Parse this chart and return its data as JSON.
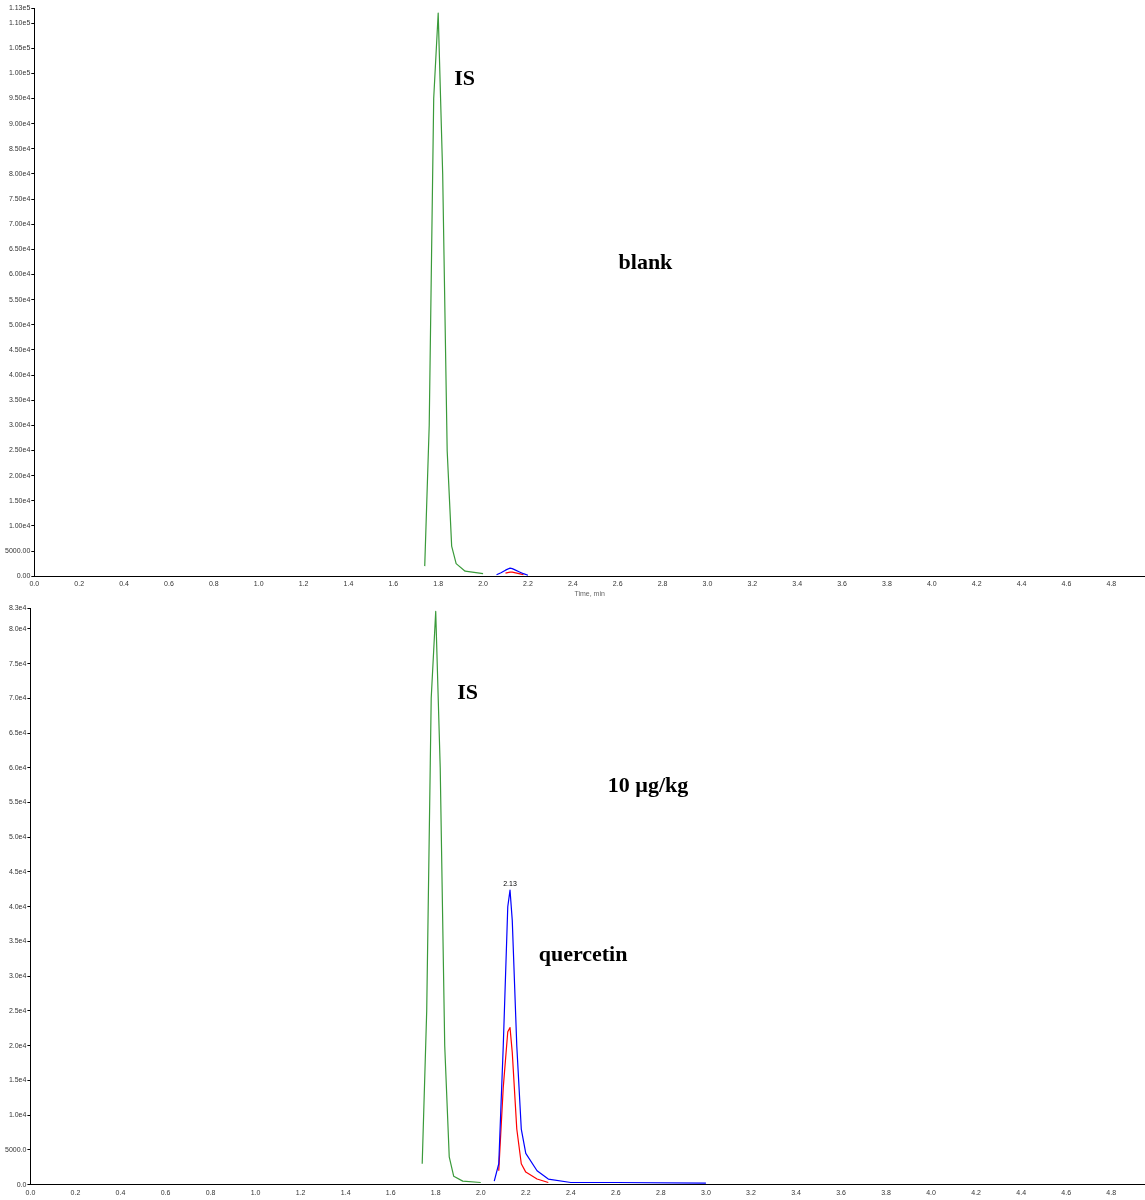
{
  "chart_data": [
    {
      "type": "line",
      "title": "blank",
      "xlabel": "Time, min",
      "x": [
        1.74,
        1.76,
        1.78,
        1.8,
        1.82,
        1.84,
        1.86,
        1.88,
        1.92,
        2.0,
        2.06,
        2.08,
        2.1,
        2.12,
        2.13,
        2.14,
        2.16,
        2.18,
        2.2
      ],
      "series": [
        {
          "color": "#3a9a3a",
          "values": [
            2000,
            30000,
            95000,
            112000,
            80000,
            25000,
            6000,
            2500,
            1000,
            500,
            null,
            null,
            null,
            null,
            null,
            null,
            null,
            null,
            null
          ]
        },
        {
          "color": "#0000ff",
          "values": [
            null,
            null,
            null,
            null,
            null,
            null,
            null,
            null,
            null,
            null,
            300,
            700,
            1200,
            1600,
            1500,
            1300,
            900,
            500,
            200
          ]
        },
        {
          "color": "#ff0000",
          "values": [
            null,
            null,
            null,
            null,
            null,
            null,
            null,
            null,
            null,
            null,
            null,
            null,
            600,
            800,
            800,
            700,
            500,
            300,
            null
          ]
        }
      ],
      "annotations": [
        "IS"
      ],
      "xlim": [
        0,
        4.95
      ],
      "ylim": [
        0,
        113000
      ],
      "xticks": [
        {
          "value": 0,
          "label": "0.0"
        },
        {
          "value": 0.2,
          "label": "0.2"
        },
        {
          "value": 0.4,
          "label": "0.4"
        },
        {
          "value": 0.6,
          "label": "0.6"
        },
        {
          "value": 0.8,
          "label": "0.8"
        },
        {
          "value": 1.0,
          "label": "1.0"
        },
        {
          "value": 1.2,
          "label": "1.2"
        },
        {
          "value": 1.4,
          "label": "1.4"
        },
        {
          "value": 1.6,
          "label": "1.6"
        },
        {
          "value": 1.8,
          "label": "1.8"
        },
        {
          "value": 2.0,
          "label": "2.0"
        },
        {
          "value": 2.2,
          "label": "2.2"
        },
        {
          "value": 2.4,
          "label": "2.4"
        },
        {
          "value": 2.6,
          "label": "2.6"
        },
        {
          "value": 2.8,
          "label": "2.8"
        },
        {
          "value": 3.0,
          "label": "3.0"
        },
        {
          "value": 3.2,
          "label": "3.2"
        },
        {
          "value": 3.4,
          "label": "3.4"
        },
        {
          "value": 3.6,
          "label": "3.6"
        },
        {
          "value": 3.8,
          "label": "3.8"
        },
        {
          "value": 4.0,
          "label": "4.0"
        },
        {
          "value": 4.2,
          "label": "4.2"
        },
        {
          "value": 4.4,
          "label": "4.4"
        },
        {
          "value": 4.6,
          "label": "4.6"
        },
        {
          "value": 4.8,
          "label": "4.8"
        }
      ],
      "yticks": [
        {
          "value": 0,
          "label": "0.00"
        },
        {
          "value": 5000,
          "label": "5000.00"
        },
        {
          "value": 10000,
          "label": "1.00e4"
        },
        {
          "value": 15000,
          "label": "1.50e4"
        },
        {
          "value": 20000,
          "label": "2.00e4"
        },
        {
          "value": 25000,
          "label": "2.50e4"
        },
        {
          "value": 30000,
          "label": "3.00e4"
        },
        {
          "value": 35000,
          "label": "3.50e4"
        },
        {
          "value": 40000,
          "label": "4.00e4"
        },
        {
          "value": 45000,
          "label": "4.50e4"
        },
        {
          "value": 50000,
          "label": "5.00e4"
        },
        {
          "value": 55000,
          "label": "5.50e4"
        },
        {
          "value": 60000,
          "label": "6.00e4"
        },
        {
          "value": 65000,
          "label": "6.50e4"
        },
        {
          "value": 70000,
          "label": "7.00e4"
        },
        {
          "value": 75000,
          "label": "7.50e4"
        },
        {
          "value": 80000,
          "label": "8.00e4"
        },
        {
          "value": 85000,
          "label": "8.50e4"
        },
        {
          "value": 90000,
          "label": "9.00e4"
        },
        {
          "value": 95000,
          "label": "9.50e4"
        },
        {
          "value": 100000,
          "label": "1.00e5"
        },
        {
          "value": 105000,
          "label": "1.05e5"
        },
        {
          "value": 110000,
          "label": "1.10e5"
        },
        {
          "value": 113000,
          "label": "1.13e5"
        }
      ],
      "grid": false,
      "legend": false,
      "marker": "none",
      "line_style": "solid"
    },
    {
      "type": "line",
      "title": "10 µg/kg",
      "x": [
        1.74,
        1.76,
        1.78,
        1.8,
        1.82,
        1.84,
        1.86,
        1.88,
        1.92,
        2.0,
        2.06,
        2.08,
        2.1,
        2.12,
        2.13,
        2.14,
        2.16,
        2.18,
        2.2,
        2.25,
        2.3,
        2.4,
        2.6,
        3.0
      ],
      "series": [
        {
          "color": "#3a9a3a",
          "values": [
            3000,
            25000,
            70000,
            82500,
            60000,
            20000,
            4000,
            1200,
            500,
            300,
            null,
            null,
            null,
            null,
            null,
            null,
            null,
            null,
            null,
            null,
            null,
            null,
            null,
            null
          ]
        },
        {
          "color": "#0000ff",
          "values": [
            null,
            null,
            null,
            null,
            null,
            null,
            null,
            null,
            null,
            null,
            500,
            3000,
            20000,
            40000,
            42400,
            38000,
            20000,
            8000,
            4500,
            2000,
            800,
            300,
            300,
            200
          ]
        },
        {
          "color": "#ff0000",
          "values": [
            null,
            null,
            null,
            null,
            null,
            null,
            null,
            null,
            null,
            null,
            null,
            2000,
            14000,
            22000,
            22600,
            19000,
            8000,
            3000,
            1800,
            800,
            300,
            null,
            null,
            null
          ]
        }
      ],
      "annotations": [
        {
          "text": "2.13",
          "x": 2.13,
          "y": 42400
        },
        "IS",
        "quercetin"
      ],
      "xlim": [
        0,
        4.95
      ],
      "ylim": [
        0,
        83000
      ],
      "xticks": [
        {
          "value": 0,
          "label": "0.0"
        },
        {
          "value": 0.2,
          "label": "0.2"
        },
        {
          "value": 0.4,
          "label": "0.4"
        },
        {
          "value": 0.6,
          "label": "0.6"
        },
        {
          "value": 0.8,
          "label": "0.8"
        },
        {
          "value": 1.0,
          "label": "1.0"
        },
        {
          "value": 1.2,
          "label": "1.2"
        },
        {
          "value": 1.4,
          "label": "1.4"
        },
        {
          "value": 1.6,
          "label": "1.6"
        },
        {
          "value": 1.8,
          "label": "1.8"
        },
        {
          "value": 2.0,
          "label": "2.0"
        },
        {
          "value": 2.2,
          "label": "2.2"
        },
        {
          "value": 2.4,
          "label": "2.4"
        },
        {
          "value": 2.6,
          "label": "2.6"
        },
        {
          "value": 2.8,
          "label": "2.8"
        },
        {
          "value": 3.0,
          "label": "3.0"
        },
        {
          "value": 3.2,
          "label": "3.2"
        },
        {
          "value": 3.4,
          "label": "3.4"
        },
        {
          "value": 3.6,
          "label": "3.6"
        },
        {
          "value": 3.8,
          "label": "3.8"
        },
        {
          "value": 4.0,
          "label": "4.0"
        },
        {
          "value": 4.2,
          "label": "4.2"
        },
        {
          "value": 4.4,
          "label": "4.4"
        },
        {
          "value": 4.6,
          "label": "4.6"
        },
        {
          "value": 4.8,
          "label": "4.8"
        }
      ],
      "yticks": [
        {
          "value": 0,
          "label": "0.0"
        },
        {
          "value": 5000,
          "label": "5000.0"
        },
        {
          "value": 10000,
          "label": "1.0e4"
        },
        {
          "value": 15000,
          "label": "1.5e4"
        },
        {
          "value": 20000,
          "label": "2.0e4"
        },
        {
          "value": 25000,
          "label": "2.5e4"
        },
        {
          "value": 30000,
          "label": "3.0e4"
        },
        {
          "value": 35000,
          "label": "3.5e4"
        },
        {
          "value": 40000,
          "label": "4.0e4"
        },
        {
          "value": 45000,
          "label": "4.5e4"
        },
        {
          "value": 50000,
          "label": "5.0e4"
        },
        {
          "value": 55000,
          "label": "5.5e4"
        },
        {
          "value": 60000,
          "label": "6.0e4"
        },
        {
          "value": 65000,
          "label": "6.5e4"
        },
        {
          "value": 70000,
          "label": "7.0e4"
        },
        {
          "value": 75000,
          "label": "7.5e4"
        },
        {
          "value": 80000,
          "label": "8.0e4"
        },
        {
          "value": 83000,
          "label": "8.3e4"
        }
      ],
      "grid": false,
      "legend": false,
      "marker": "none",
      "line_style": "solid"
    }
  ]
}
